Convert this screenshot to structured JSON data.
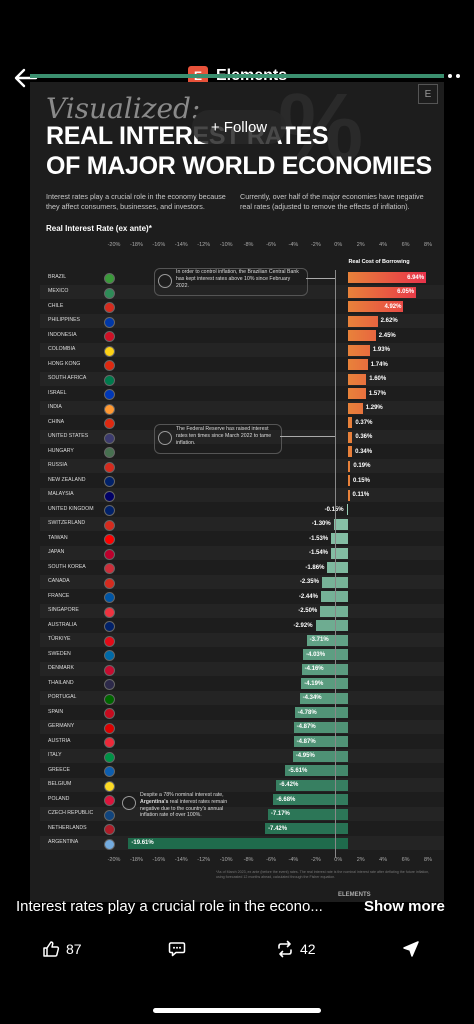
{
  "header": {
    "brand_logo": "E",
    "brand_name": "Elements"
  },
  "follow_label": "+ Follow",
  "post": {
    "badge": "E",
    "bg_symbol": "%",
    "title_script": "Visualized:",
    "title_line1": "REAL INTEREST RATES",
    "title_line2": "OF MAJOR WORLD ECONOMIES",
    "intro_left": "Interest rates play a crucial role in the economy because they affect consumers, businesses, and investors.",
    "intro_right": "Currently, over half of the major economies have negative real rates (adjusted to remove the effects of inflation).",
    "axis_title": "Real Interest Rate (ex ante)*",
    "borrow_header": "Real Cost of Borrowing",
    "annotations": {
      "brazil": "In order to control inflation, the Brazilian Central Bank has kept interest rates above 10% since February 2022.",
      "us": "The Federal Reserve has raised interest rates ten times since March 2022 to tame inflation.",
      "argentina_pre": "Despite a 78% nominal interest rate,",
      "argentina_strong": "Argentina's",
      "argentina_post": "real interest rates remain negative due to the country's annual inflation rate of over 100%."
    },
    "footnote": "*As of March 2023, ex ante (before the event) rates. The real interest rate is the nominal interest rate after deflating the future inflation, using forecasted 12 months ahead, calculated through the Fisher equation.",
    "source": "ELEMENTS"
  },
  "colors": {
    "positive_high": "#e8324a",
    "positive_low": "#e8823a",
    "negative_low": "#9bd1b8",
    "negative_high": "#1f6b4c"
  },
  "chart_data": {
    "type": "bar",
    "orientation": "horizontal",
    "title": "REAL INTEREST RATES OF MAJOR WORLD ECONOMIES",
    "xlabel": "Real Interest Rate (ex ante)*",
    "xlim": [
      -20,
      8
    ],
    "ticks": [
      "-20%",
      "-18%",
      "-16%",
      "-14%",
      "-12%",
      "-10%",
      "-8%",
      "-6%",
      "-4%",
      "-2%",
      "0%",
      "2%",
      "4%",
      "6%",
      "8%"
    ],
    "categories": [
      "BRAZIL",
      "MEXICO",
      "CHILE",
      "PHILIPPINES",
      "INDONESIA",
      "COLOMBIA",
      "HONG KONG",
      "SOUTH AFRICA",
      "ISRAEL",
      "INDIA",
      "CHINA",
      "UNITED STATES",
      "HUNGARY",
      "RUSSIA",
      "NEW ZEALAND",
      "MALAYSIA",
      "UNITED KINGDOM",
      "SWITZERLAND",
      "TAIWAN",
      "JAPAN",
      "SOUTH KOREA",
      "CANADA",
      "FRANCE",
      "SINGAPORE",
      "AUSTRALIA",
      "TÜRKIYE",
      "SWEDEN",
      "DENMARK",
      "THAILAND",
      "PORTUGAL",
      "SPAIN",
      "GERMANY",
      "AUSTRIA",
      "ITALY",
      "GREECE",
      "BELGIUM",
      "POLAND",
      "CZECH REPUBLIC",
      "NETHERLANDS",
      "ARGENTINA"
    ],
    "values": [
      6.94,
      6.05,
      4.92,
      2.62,
      2.45,
      1.93,
      1.74,
      1.6,
      1.57,
      1.29,
      0.37,
      0.36,
      0.34,
      0.19,
      0.15,
      0.11,
      -0.15,
      -1.3,
      -1.53,
      -1.54,
      -1.86,
      -2.35,
      -2.44,
      -2.5,
      -2.92,
      -3.71,
      -4.03,
      -4.16,
      -4.19,
      -4.34,
      -4.78,
      -4.87,
      -4.87,
      -4.95,
      -5.61,
      -6.42,
      -6.68,
      -7.17,
      -7.42,
      -19.61
    ],
    "labels": [
      "6.94%",
      "6.05%",
      "4.92%",
      "2.62%",
      "2.45%",
      "1.93%",
      "1.74%",
      "1.60%",
      "1.57%",
      "1.29%",
      "0.37%",
      "0.36%",
      "0.34%",
      "0.19%",
      "0.15%",
      "0.11%",
      "-0.15%",
      "-1.30%",
      "-1.53%",
      "-1.54%",
      "-1.86%",
      "-2.35%",
      "-2.44%",
      "-2.50%",
      "-2.92%",
      "-3.71%",
      "-4.03%",
      "-4.16%",
      "-4.19%",
      "-4.34%",
      "-4.78%",
      "-4.87%",
      "-4.87%",
      "-4.95%",
      "-5.61%",
      "-6.42%",
      "-6.68%",
      "-7.17%",
      "-7.42%",
      "-19.61%"
    ],
    "flag_colors": [
      "#3a9a3a",
      "#2e8b57",
      "#d52b1e",
      "#0038a8",
      "#ce1126",
      "#fcd116",
      "#de2910",
      "#007a4d",
      "#0038b8",
      "#ff9933",
      "#de2910",
      "#3c3b6e",
      "#477050",
      "#d52b1e",
      "#012169",
      "#010066",
      "#012169",
      "#d52b1e",
      "#fe0000",
      "#bc002d",
      "#cd2e3a",
      "#d52b1e",
      "#0055a4",
      "#ef3340",
      "#012169",
      "#e30a17",
      "#006aa7",
      "#c60c30",
      "#2d2a4a",
      "#006600",
      "#c60b1e",
      "#dd0000",
      "#ed2939",
      "#009246",
      "#0d5eaf",
      "#fdda24",
      "#dc143c",
      "#11457e",
      "#ae1c28",
      "#74acdf"
    ],
    "grid": false
  },
  "caption": {
    "text": "Interest rates play a crucial role in the econo...",
    "show_more": "Show more"
  },
  "actions": {
    "likes": "87",
    "reposts": "42"
  }
}
